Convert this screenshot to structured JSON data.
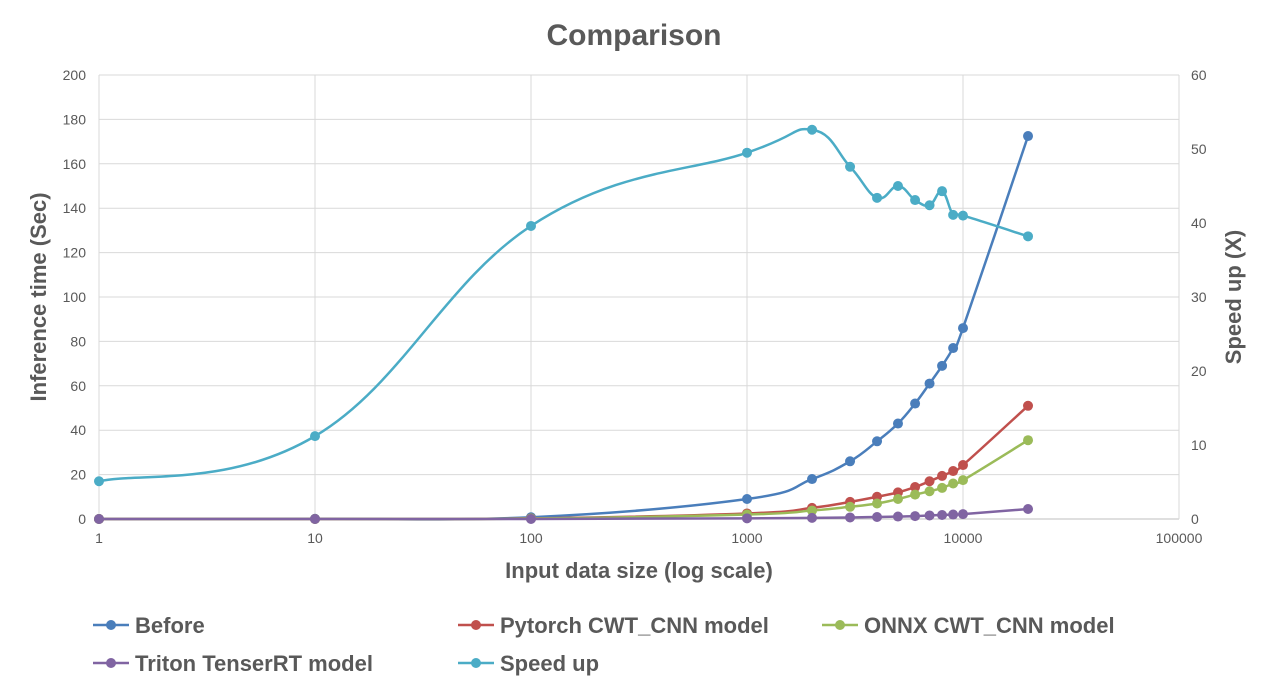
{
  "chart_data": {
    "type": "line",
    "title": "Comparison",
    "xlabel": "Input data size (log scale)",
    "ylabel": "Inference time (Sec)",
    "y2label": "Speed up (X)",
    "xscale": "log",
    "xlim": [
      1,
      100000
    ],
    "ylim": [
      0,
      200
    ],
    "y2lim": [
      0,
      60
    ],
    "grid": true,
    "legend_position": "bottom",
    "x_ticks": [
      "1",
      "10",
      "100",
      "1000",
      "10000",
      "100000"
    ],
    "y_ticks": [
      "0",
      "20",
      "40",
      "60",
      "80",
      "100",
      "120",
      "140",
      "160",
      "180",
      "200"
    ],
    "y2_ticks": [
      "0",
      "10",
      "20",
      "30",
      "40",
      "50",
      "60"
    ],
    "x": [
      1,
      10,
      100,
      1000,
      2000,
      3000,
      4000,
      5000,
      6000,
      7000,
      8000,
      9000,
      10000,
      20000
    ],
    "series": [
      {
        "name": "Before",
        "axis": "left",
        "color": "#4a7ebb",
        "values": [
          0,
          0.1,
          0.8,
          9,
          18,
          26,
          35,
          43,
          52,
          61,
          69,
          77,
          86,
          172.5
        ]
      },
      {
        "name": "Pytorch CWT_CNN model",
        "axis": "left",
        "color": "#c0504d",
        "values": [
          0,
          0,
          0.3,
          2.5,
          5,
          7.7,
          10,
          12,
          14.4,
          17,
          19.4,
          21.6,
          24.3,
          51
        ]
      },
      {
        "name": "ONNX CWT_CNN model",
        "axis": "left",
        "color": "#9bbb59",
        "values": [
          0,
          0,
          0.2,
          2,
          3.8,
          5.5,
          7,
          9,
          11,
          12.5,
          14,
          16,
          17.5,
          35.5
        ]
      },
      {
        "name": "Triton TenserRT model",
        "axis": "left",
        "color": "#8064a2",
        "values": [
          0,
          0,
          0,
          0.3,
          0.5,
          0.7,
          0.9,
          1.1,
          1.3,
          1.6,
          1.8,
          2,
          2.2,
          4.5
        ]
      },
      {
        "name": "Speed up",
        "axis": "right",
        "color": "#4bacc6",
        "values": [
          5.1,
          11.2,
          39.6,
          49.5,
          52.6,
          47.6,
          43.4,
          45,
          43.1,
          42.4,
          44.3,
          41.1,
          41,
          38.2
        ]
      }
    ]
  }
}
